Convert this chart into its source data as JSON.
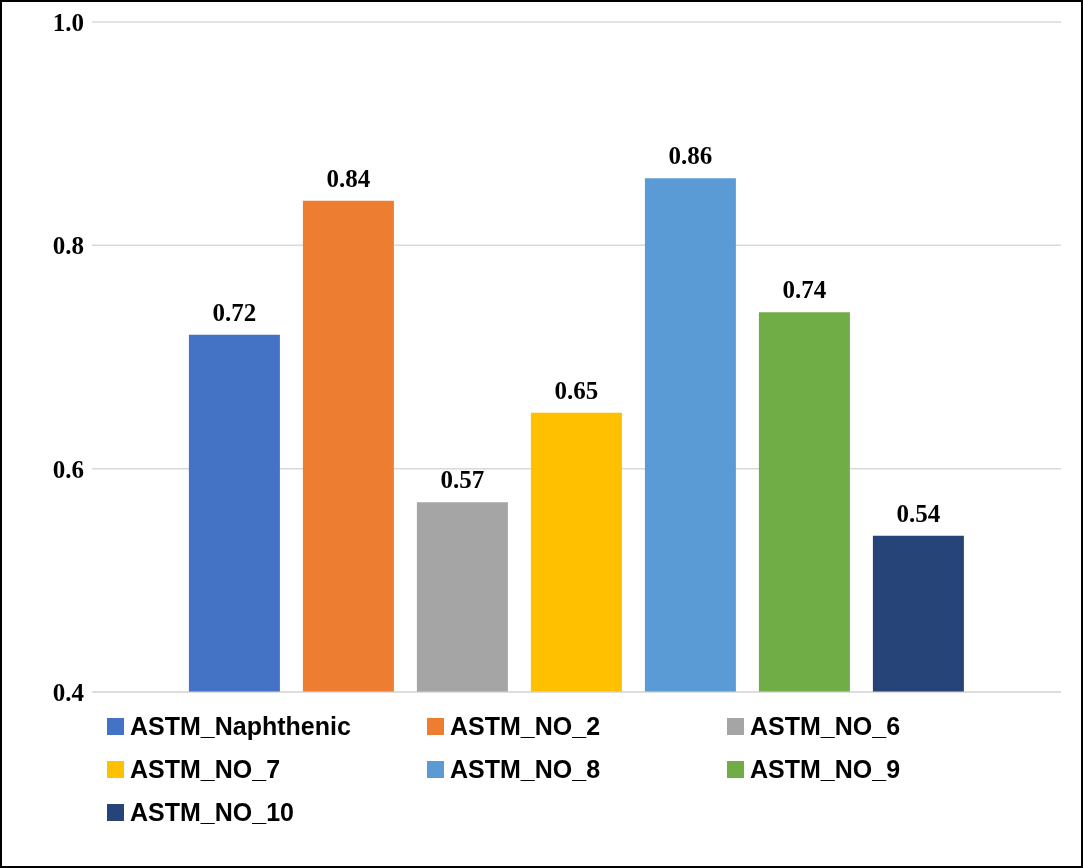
{
  "chart_data": {
    "type": "bar",
    "categories": [
      null
    ],
    "series": [
      {
        "name": "ASTM_Naphthenic",
        "color": "#4472c4",
        "values": [
          0.72
        ]
      },
      {
        "name": "ASTM_NO_2",
        "color": "#ed7d31",
        "values": [
          0.84
        ]
      },
      {
        "name": "ASTM_NO_6",
        "color": "#a5a5a5",
        "values": [
          0.57
        ]
      },
      {
        "name": "ASTM_NO_7",
        "color": "#ffc000",
        "values": [
          0.65
        ]
      },
      {
        "name": "ASTM_NO_8",
        "color": "#5b9bd5",
        "values": [
          0.86
        ]
      },
      {
        "name": "ASTM_NO_9",
        "color": "#70ad47",
        "values": [
          0.74
        ]
      },
      {
        "name": "ASTM_NO_10",
        "color": "#264478",
        "values": [
          0.54
        ]
      }
    ],
    "ylim": [
      0.4,
      1.0
    ],
    "yticks": [
      0.4,
      0.6,
      0.8,
      {
        "value": 1,
        "label": "1.0"
      }
    ],
    "grid": "y",
    "data_labels": true,
    "legend": "bottom"
  }
}
